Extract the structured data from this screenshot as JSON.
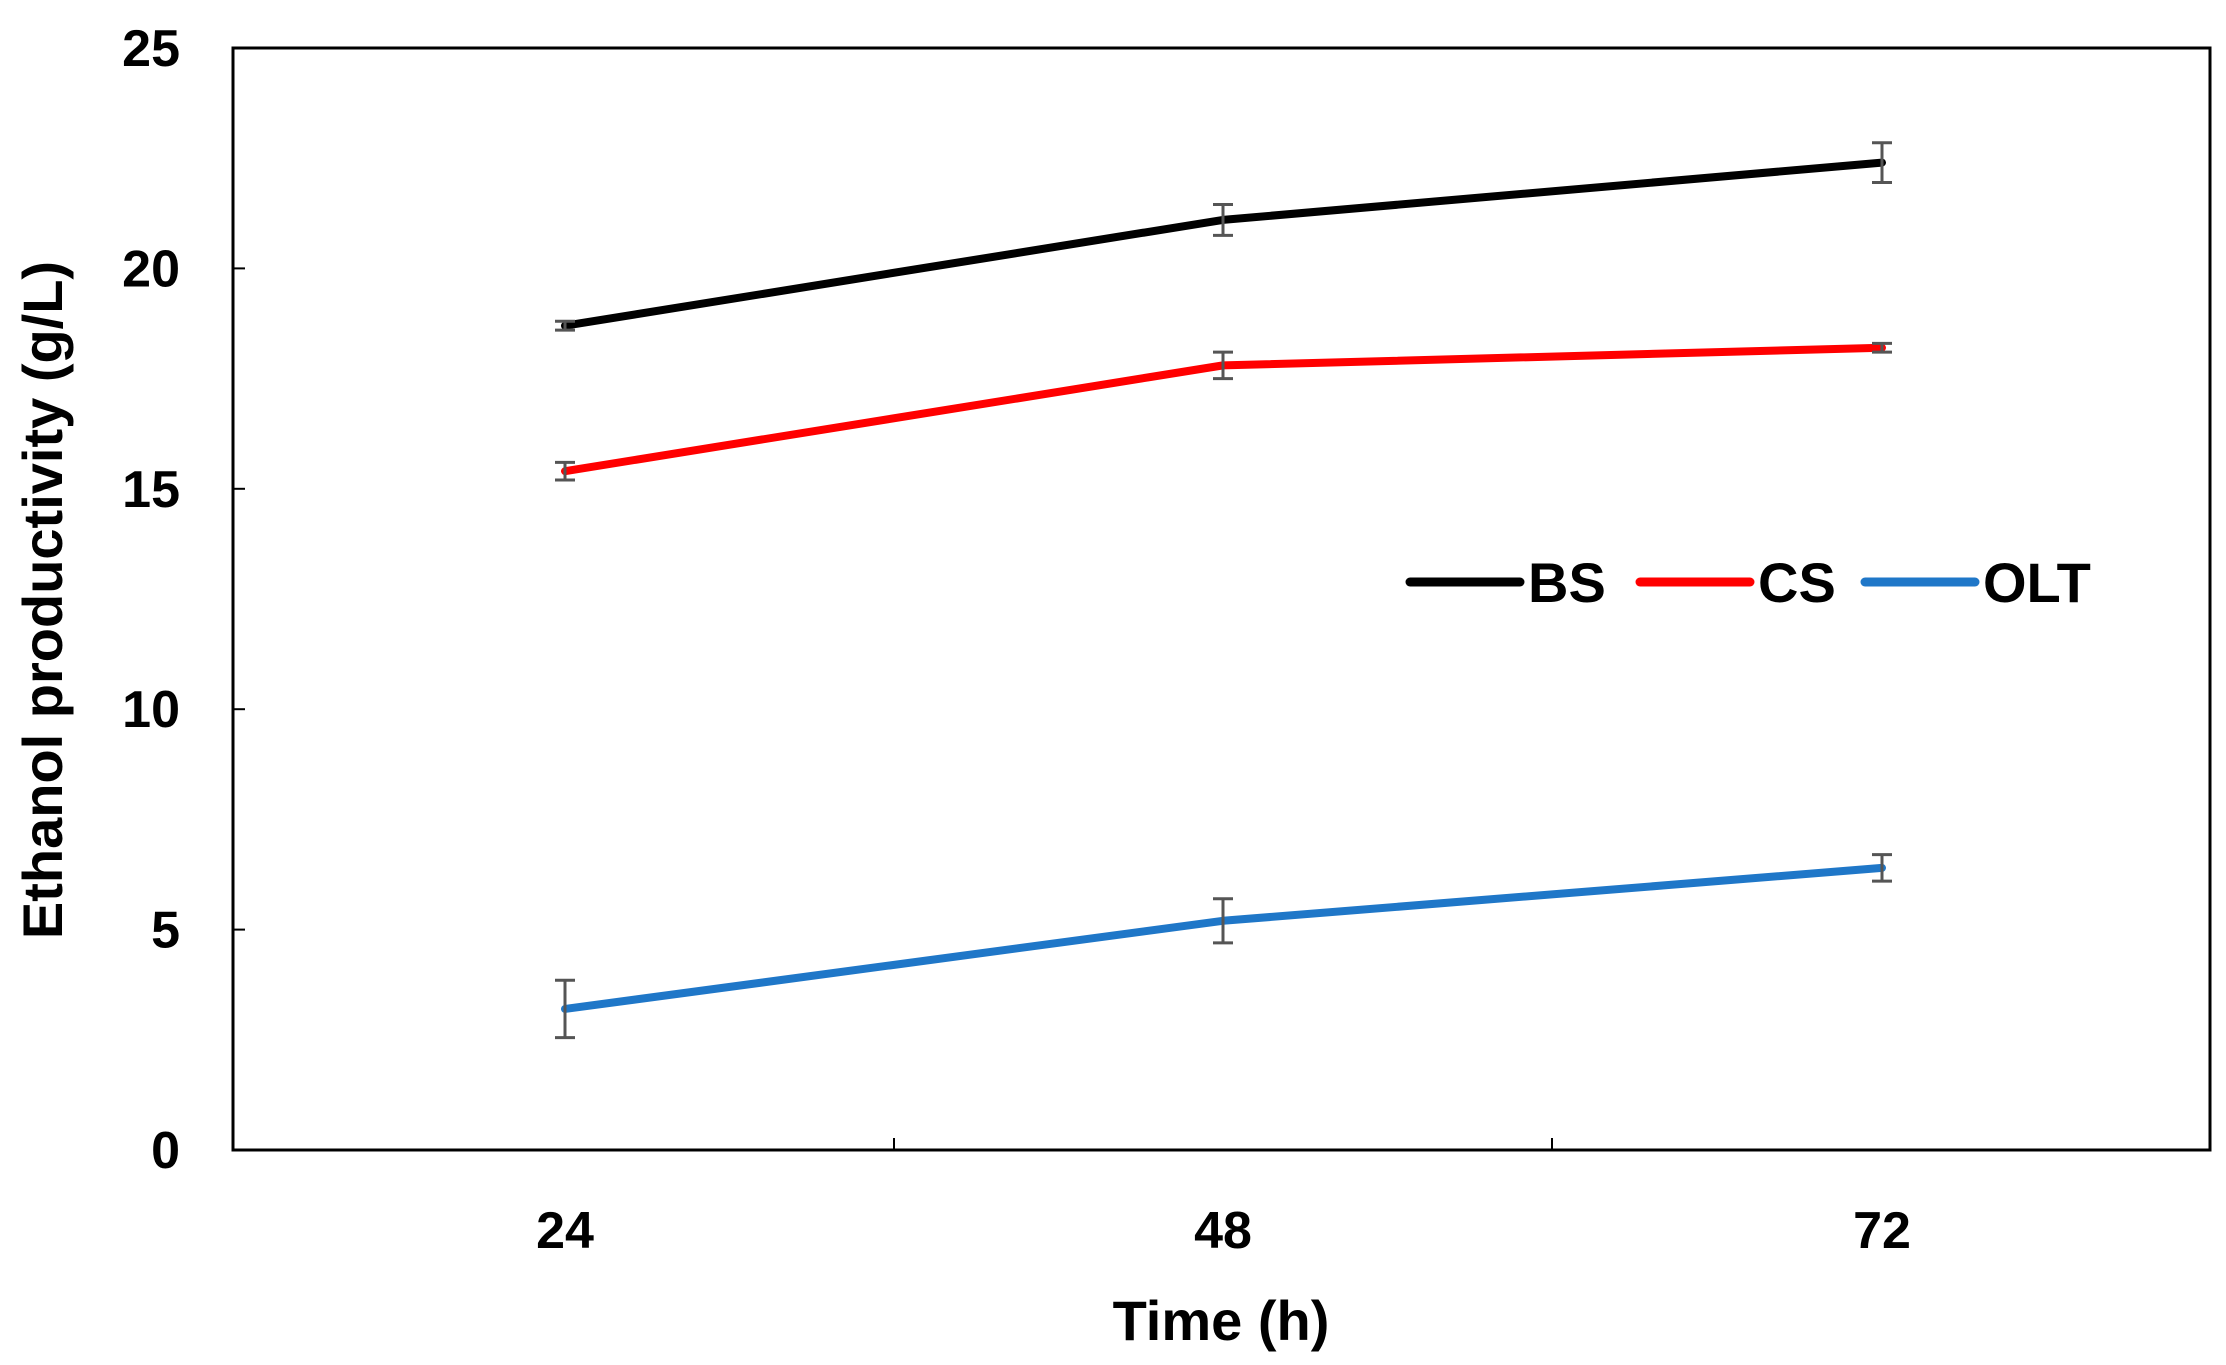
{
  "chart_data": {
    "type": "line",
    "title": "",
    "xlabel": "Time (h)",
    "ylabel": "Ethanol productivity (g/L)",
    "categories": [
      "24",
      "48",
      "72"
    ],
    "ylim": [
      0,
      25
    ],
    "yticks": [
      "0",
      "5",
      "10",
      "15",
      "20",
      "25"
    ],
    "grid": false,
    "legend_position": "center-right",
    "series": [
      {
        "name": "BS",
        "color": "#000000",
        "values": [
          18.7,
          21.1,
          22.4
        ],
        "errors": [
          0.1,
          0.35,
          0.45
        ]
      },
      {
        "name": "CS",
        "color": "#ff0000",
        "values": [
          15.4,
          17.8,
          18.2
        ],
        "errors": [
          0.2,
          0.3,
          0.1
        ]
      },
      {
        "name": "OLT",
        "color": "#1f77c8",
        "values": [
          3.2,
          5.2,
          6.4
        ],
        "errors": [
          0.65,
          0.5,
          0.3
        ]
      }
    ]
  }
}
